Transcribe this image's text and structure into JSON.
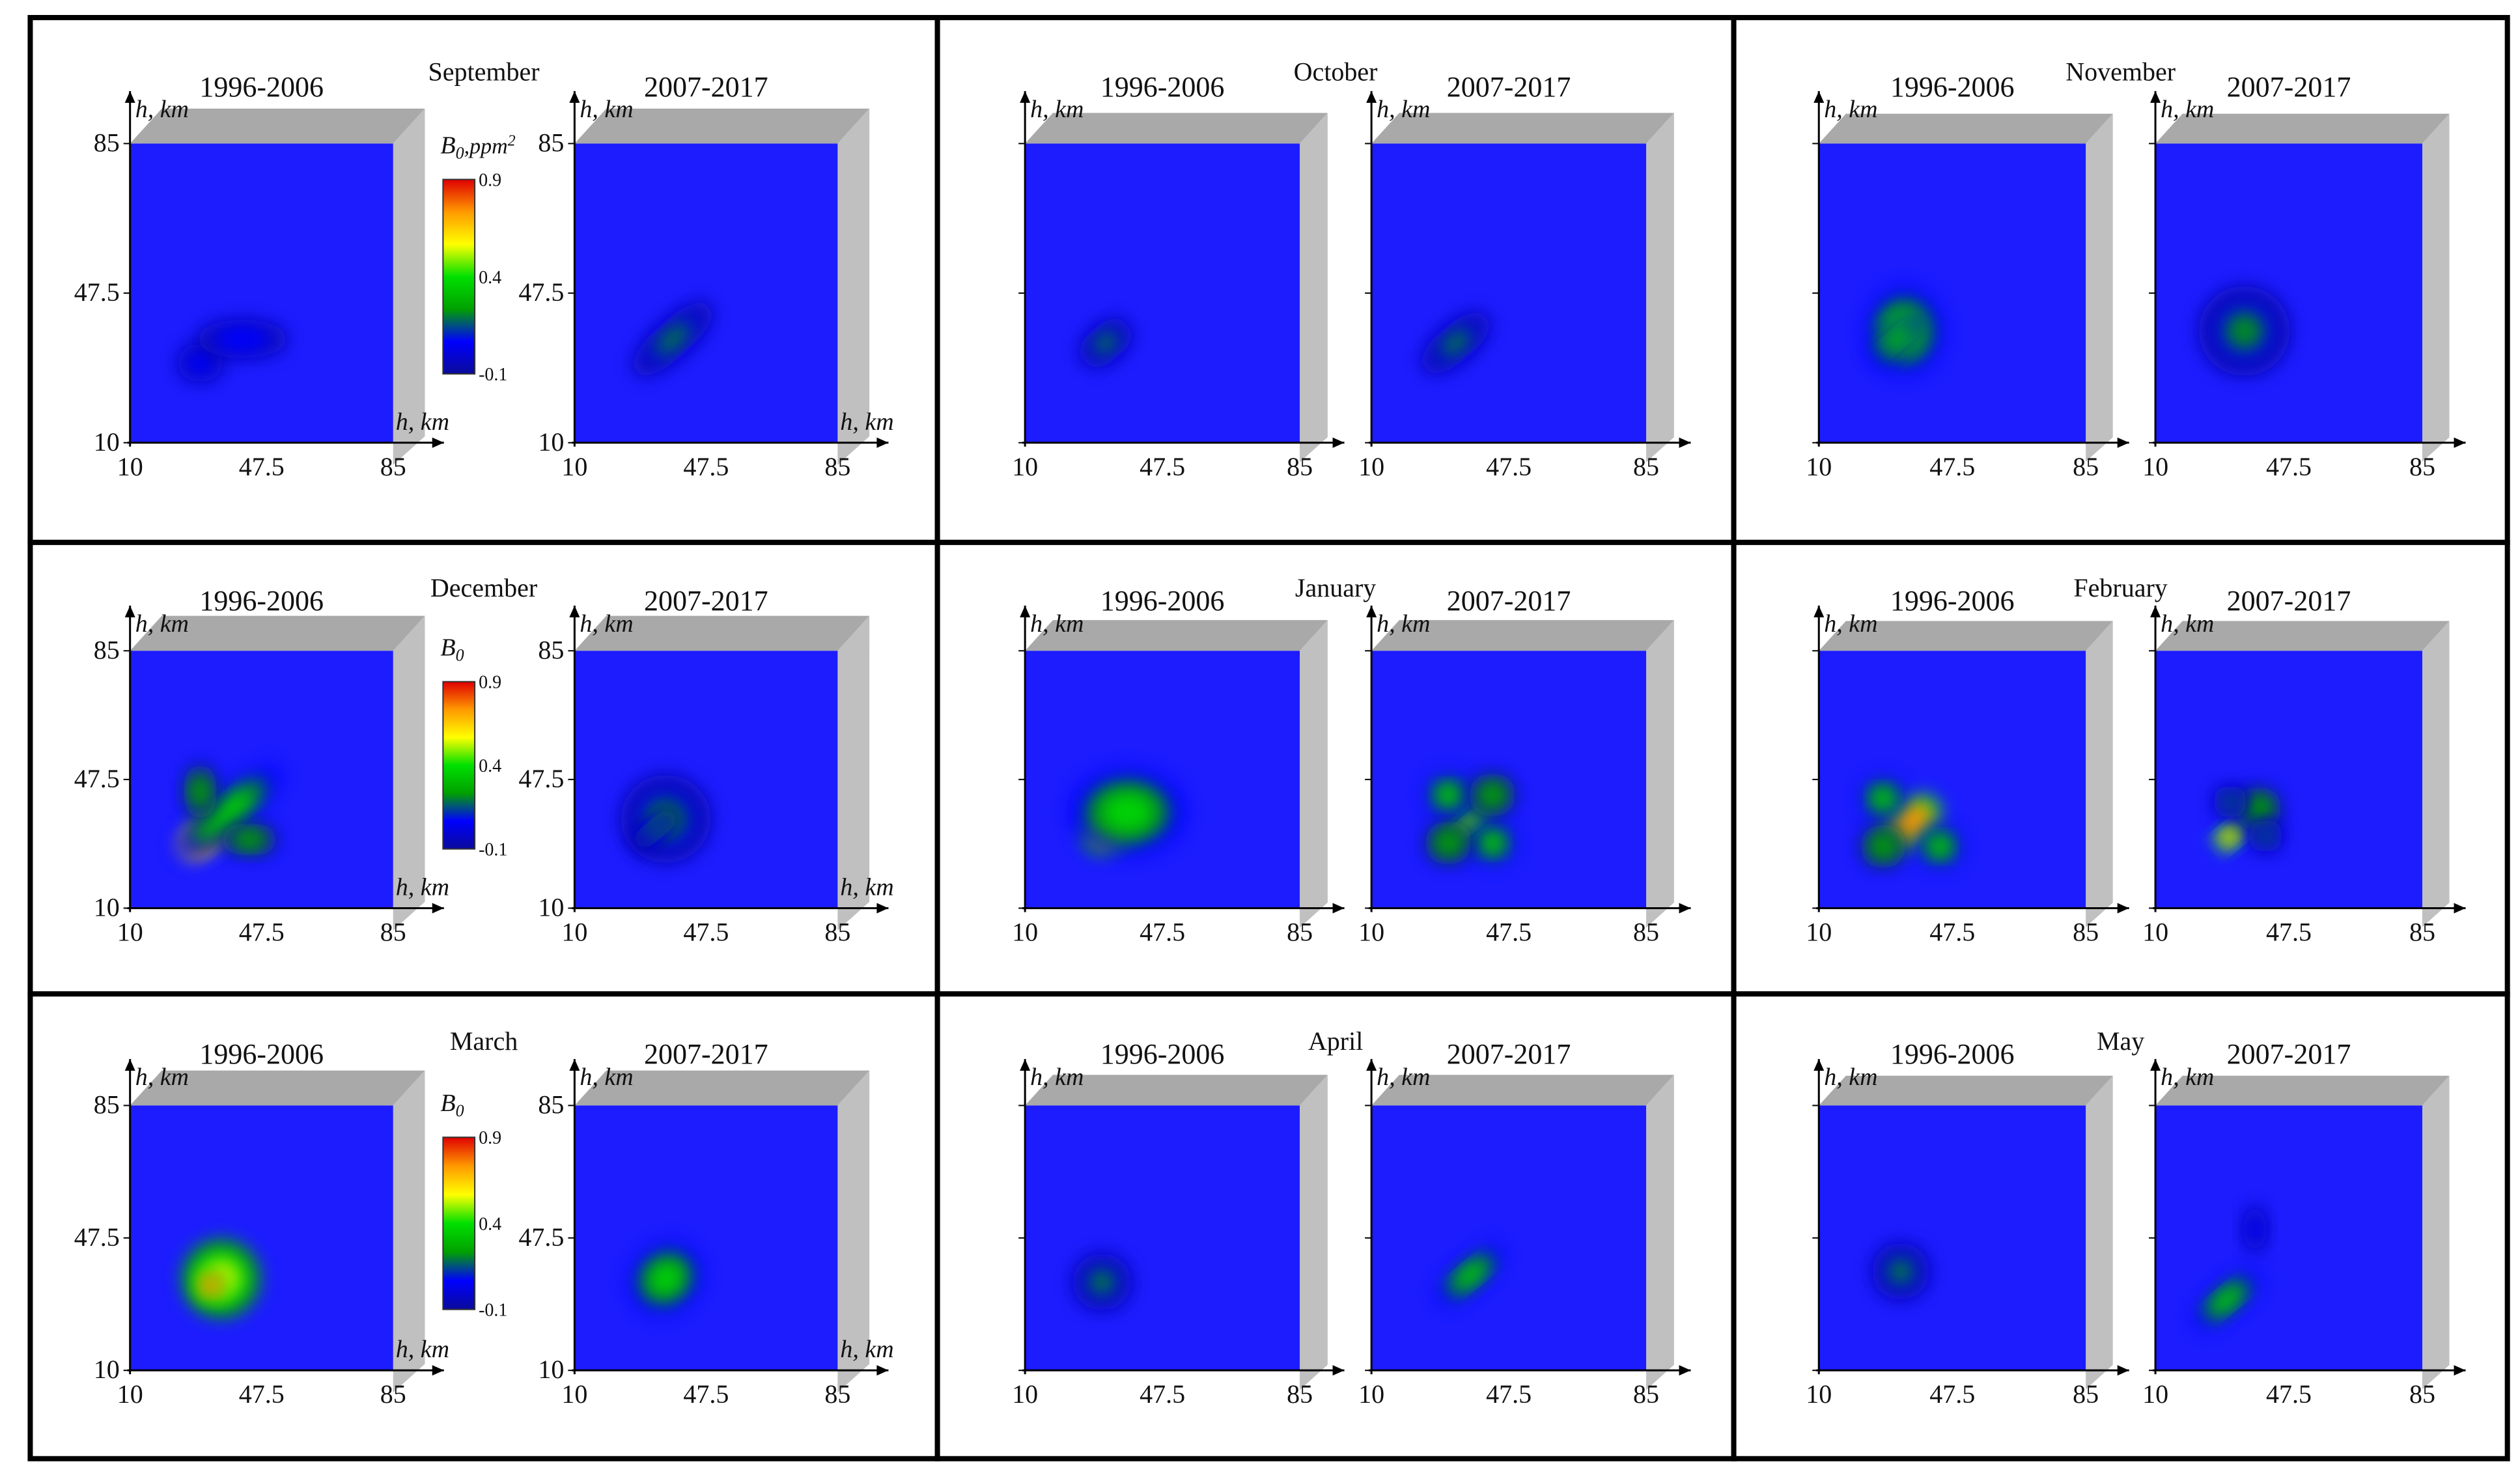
{
  "colors": {
    "background": "#1c1cff",
    "frame_gray": "#c0c0c0",
    "frame_gray_top": "#a9a9a9",
    "panel_border": "#000000",
    "colormap": [
      "#0a0a9a",
      "#0000ff",
      "#00a000",
      "#00e000",
      "#ffff00",
      "#ff9900",
      "#e00000"
    ]
  },
  "labels": {
    "period_1": "1996-2006",
    "period_2": "2007-2017",
    "axis_h": "h, km",
    "b0": "B",
    "b0_sub": "0",
    "b0_units": ",ppm",
    "b0_units_sup": "2",
    "ticks": [
      "10",
      "47.5",
      "85"
    ],
    "colorbar_ticks": [
      "0.9",
      "0.4",
      "-0.1"
    ]
  },
  "chart_data": [
    {
      "type": "heatmap",
      "month": "September",
      "x": {
        "label": "h, km",
        "ticks": [
          10,
          47.5,
          85
        ],
        "range": [
          10,
          85
        ]
      },
      "y": {
        "label": "h, km",
        "ticks": [
          10,
          47.5,
          85
        ],
        "range": [
          10,
          85
        ]
      },
      "z": {
        "label": "B0, ppm2",
        "range": [
          -0.1,
          0.9
        ],
        "colorbar_ticks": [
          -0.1,
          0.4,
          0.9
        ]
      },
      "series": [
        {
          "name": "1996-2006",
          "blobs": [
            {
              "x": 30,
              "y": 30,
              "sx": 4,
              "sy": 3,
              "v": 0.1
            },
            {
              "x": 42,
              "y": 36,
              "sx": 8,
              "sy": 3,
              "v": 0.05
            }
          ]
        },
        {
          "name": "2007-2017",
          "blobs": [
            {
              "x": 38,
              "y": 36,
              "sx": 9,
              "sy": 3,
              "v": 0.25,
              "rot": 42
            }
          ]
        }
      ]
    },
    {
      "type": "heatmap",
      "month": "October",
      "x": {
        "label": "h, km",
        "ticks": [
          10,
          47.5,
          85
        ],
        "range": [
          10,
          85
        ]
      },
      "y": {
        "label": "h, km",
        "ticks": [
          10,
          47.5,
          85
        ],
        "range": [
          10,
          85
        ]
      },
      "z": {
        "range": [
          -0.1,
          0.9
        ]
      },
      "series": [
        {
          "name": "1996-2006",
          "blobs": [
            {
              "x": 32,
              "y": 35,
              "sx": 5,
              "sy": 3,
              "v": 0.28,
              "rot": 40
            }
          ]
        },
        {
          "name": "2007-2017",
          "blobs": [
            {
              "x": 33,
              "y": 35,
              "sx": 7,
              "sy": 3,
              "v": 0.25,
              "rot": 40
            }
          ]
        }
      ]
    },
    {
      "type": "heatmap",
      "month": "November",
      "x": {
        "label": "h, km",
        "ticks": [
          10,
          47.5,
          85
        ],
        "range": [
          10,
          85
        ]
      },
      "y": {
        "label": "h, km",
        "ticks": [
          10,
          47.5,
          85
        ],
        "range": [
          10,
          85
        ]
      },
      "z": {
        "range": [
          -0.1,
          0.9
        ]
      },
      "series": [
        {
          "name": "1996-2006",
          "blobs": [
            {
              "x": 34,
              "y": 38,
              "sx": 7,
              "sy": 7,
              "v": 0.45
            },
            {
              "x": 32,
              "y": 36,
              "sx": 6,
              "sy": 2,
              "v": 0.35,
              "rot": 40
            }
          ]
        },
        {
          "name": "2007-2017",
          "blobs": [
            {
              "x": 35,
              "y": 38,
              "sx": 8,
              "sy": 7,
              "v": 0.22
            }
          ]
        }
      ]
    },
    {
      "type": "heatmap",
      "month": "December",
      "x": {
        "label": "h, km",
        "ticks": [
          10,
          47.5,
          85
        ],
        "range": [
          10,
          85
        ]
      },
      "y": {
        "label": "h, km",
        "ticks": [
          10,
          47.5,
          85
        ],
        "range": [
          10,
          85
        ]
      },
      "z": {
        "label": "B0",
        "range": [
          -0.1,
          0.9
        ],
        "colorbar_ticks": [
          -0.1,
          0.4,
          0.9
        ]
      },
      "series": [
        {
          "name": "1996-2006",
          "blobs": [
            {
              "x": 31,
              "y": 31,
              "sx": 5,
              "sy": 3,
              "v": 0.85,
              "rot": 40
            },
            {
              "x": 38,
              "y": 38,
              "sx": 12,
              "sy": 4,
              "v": 0.35,
              "rot": 40
            },
            {
              "x": 30,
              "y": 44,
              "sx": 3,
              "sy": 5,
              "v": 0.3
            },
            {
              "x": 44,
              "y": 30,
              "sx": 5,
              "sy": 3,
              "v": 0.3
            }
          ]
        },
        {
          "name": "2007-2017",
          "blobs": [
            {
              "x": 36,
              "y": 36,
              "sx": 8,
              "sy": 8,
              "v": 0.2
            },
            {
              "x": 33,
              "y": 33,
              "sx": 5,
              "sy": 2,
              "v": 0.25,
              "rot": 40
            }
          ]
        }
      ]
    },
    {
      "type": "heatmap",
      "month": "January",
      "x": {
        "label": "h, km",
        "ticks": [
          10,
          47.5,
          85
        ],
        "range": [
          10,
          85
        ]
      },
      "y": {
        "label": "h, km",
        "ticks": [
          10,
          47.5,
          85
        ],
        "range": [
          10,
          85
        ]
      },
      "z": {
        "range": [
          -0.1,
          0.9
        ]
      },
      "series": [
        {
          "name": "1996-2006",
          "blobs": [
            {
              "x": 34,
              "y": 34,
              "sx": 6,
              "sy": 4,
              "v": 0.65,
              "rot": 40
            },
            {
              "x": 38,
              "y": 38,
              "sx": 10,
              "sy": 8,
              "v": 0.35
            }
          ]
        },
        {
          "name": "2007-2017",
          "blobs": [
            {
              "x": 36,
              "y": 34,
              "sx": 5,
              "sy": 2,
              "v": 0.55,
              "rot": 40
            },
            {
              "x": 31,
              "y": 43,
              "sx": 4,
              "sy": 4,
              "v": 0.35
            },
            {
              "x": 43,
              "y": 29,
              "sx": 4,
              "sy": 4,
              "v": 0.35
            },
            {
              "x": 31,
              "y": 29,
              "sx": 4,
              "sy": 4,
              "v": 0.3
            },
            {
              "x": 43,
              "y": 43,
              "sx": 4,
              "sy": 4,
              "v": 0.3
            }
          ]
        }
      ]
    },
    {
      "type": "heatmap",
      "month": "February",
      "x": {
        "label": "h, km",
        "ticks": [
          10,
          47.5,
          85
        ],
        "range": [
          10,
          85
        ]
      },
      "y": {
        "label": "h, km",
        "ticks": [
          10,
          47.5,
          85
        ],
        "range": [
          10,
          85
        ]
      },
      "z": {
        "range": [
          -0.1,
          0.9
        ]
      },
      "series": [
        {
          "name": "1996-2006",
          "blobs": [
            {
              "x": 36,
              "y": 35,
              "sx": 6,
              "sy": 4,
              "v": 0.8,
              "rot": 40
            },
            {
              "x": 28,
              "y": 42,
              "sx": 4,
              "sy": 4,
              "v": 0.35
            },
            {
              "x": 44,
              "y": 28,
              "sx": 4,
              "sy": 4,
              "v": 0.35
            },
            {
              "x": 28,
              "y": 28,
              "sx": 4,
              "sy": 4,
              "v": 0.3
            }
          ]
        },
        {
          "name": "2007-2017",
          "blobs": [
            {
              "x": 31,
              "y": 31,
              "sx": 3,
              "sy": 2,
              "v": 0.75,
              "rot": 40
            },
            {
              "x": 39,
              "y": 39,
              "sx": 4,
              "sy": 4,
              "v": 0.3
            },
            {
              "x": 31,
              "y": 41,
              "sx": 3,
              "sy": 3,
              "v": 0.28
            },
            {
              "x": 41,
              "y": 31,
              "sx": 3,
              "sy": 3,
              "v": 0.28
            }
          ]
        }
      ]
    },
    {
      "type": "heatmap",
      "month": "March",
      "x": {
        "label": "h, km",
        "ticks": [
          10,
          47.5,
          85
        ],
        "range": [
          10,
          85
        ]
      },
      "y": {
        "label": "h, km",
        "ticks": [
          10,
          47.5,
          85
        ],
        "range": [
          10,
          85
        ]
      },
      "z": {
        "label": "B0",
        "range": [
          -0.1,
          0.9
        ],
        "colorbar_ticks": [
          -0.1,
          0.4,
          0.9
        ]
      },
      "series": [
        {
          "name": "1996-2006",
          "blobs": [
            {
              "x": 36,
              "y": 36,
              "sx": 7,
              "sy": 7,
              "v": 0.6
            },
            {
              "x": 33,
              "y": 34,
              "sx": 3,
              "sy": 3,
              "v": 0.8
            }
          ]
        },
        {
          "name": "2007-2017",
          "blobs": [
            {
              "x": 36,
              "y": 36,
              "sx": 7,
              "sy": 6,
              "v": 0.45,
              "rot": 40
            }
          ]
        }
      ]
    },
    {
      "type": "heatmap",
      "month": "April",
      "x": {
        "label": "h, km",
        "ticks": [
          10,
          47.5,
          85
        ],
        "range": [
          10,
          85
        ]
      },
      "y": {
        "label": "h, km",
        "ticks": [
          10,
          47.5,
          85
        ],
        "range": [
          10,
          85
        ]
      },
      "z": {
        "range": [
          -0.1,
          0.9
        ]
      },
      "series": [
        {
          "name": "1996-2006",
          "blobs": [
            {
              "x": 31,
              "y": 35,
              "sx": 5,
              "sy": 5,
              "v": 0.22
            }
          ]
        },
        {
          "name": "2007-2017",
          "blobs": [
            {
              "x": 37,
              "y": 37,
              "sx": 7,
              "sy": 3,
              "v": 0.45,
              "rot": 40
            }
          ]
        }
      ]
    },
    {
      "type": "heatmap",
      "month": "May",
      "x": {
        "label": "h, km",
        "ticks": [
          10,
          47.5,
          85
        ],
        "range": [
          10,
          85
        ]
      },
      "y": {
        "label": "h, km",
        "ticks": [
          10,
          47.5,
          85
        ],
        "range": [
          10,
          85
        ]
      },
      "z": {
        "range": [
          -0.1,
          0.9
        ]
      },
      "series": [
        {
          "name": "1996-2006",
          "blobs": [
            {
              "x": 33,
              "y": 38,
              "sx": 5,
              "sy": 5,
              "v": 0.25
            }
          ]
        },
        {
          "name": "2007-2017",
          "blobs": [
            {
              "x": 30,
              "y": 30,
              "sx": 7,
              "sy": 3,
              "v": 0.4,
              "rot": 40
            },
            {
              "x": 38,
              "y": 50,
              "sx": 2,
              "sy": 4,
              "v": 0.12
            }
          ]
        }
      ]
    }
  ]
}
